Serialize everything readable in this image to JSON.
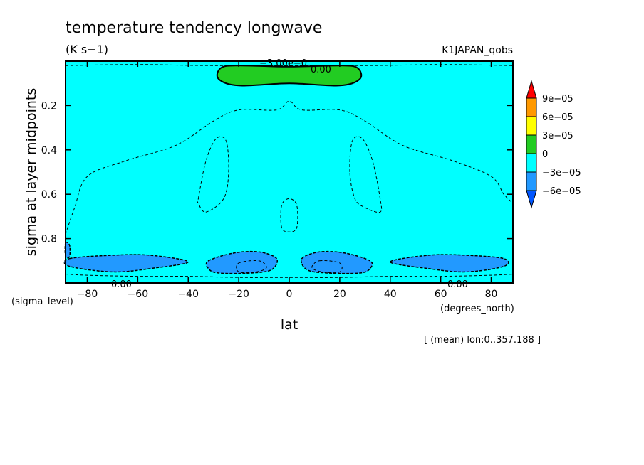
{
  "chart_data": {
    "type": "heatmap",
    "title": "temperature tendency longwave",
    "units": "(K s−1)",
    "dataset": "K1JAPAN_qobs",
    "xlabel": "lat",
    "ylabel": "sigma at layer midpoints",
    "x_unit_label": "(degrees_north)",
    "y_unit_label": "(sigma_level)",
    "note": "[ (mean) lon:0..357.188 ]",
    "xlim": [
      -88.6,
      88.6
    ],
    "ylim": [
      1.0,
      0.0
    ],
    "x_ticks": [
      -80,
      -60,
      -40,
      -20,
      0,
      20,
      40,
      60,
      80
    ],
    "x_tick_labels": [
      "−80",
      "−60",
      "−40",
      "−20",
      "0",
      "20",
      "40",
      "60",
      "80"
    ],
    "y_ticks": [
      0.2,
      0.4,
      0.6,
      0.8
    ],
    "y_tick_labels": [
      "0.2",
      "0.4",
      "0.6",
      "0.8"
    ],
    "colorbar": {
      "labels": [
        "9e−05",
        "6e−05",
        "3e−05",
        "0",
        "−3e−05",
        "−6e−05"
      ],
      "colors": [
        "#ff0000",
        "#ff9900",
        "#ffff00",
        "#22cc22",
        "#00ffff",
        "#2299ff",
        "#0055ff"
      ],
      "levels": [
        -6e-05,
        -3e-05,
        0,
        3e-05,
        6e-05,
        9e-05
      ]
    },
    "contour_labels": [
      "−3.00e−0",
      "0.00",
      "0.00",
      "0.00"
    ],
    "background_color": "#00ffff",
    "regions": [
      {
        "value_class": "0 to 3e-05",
        "color": "#22cc22",
        "outline": [
          [
            -27,
            0.03
          ],
          [
            -20,
            0.02
          ],
          [
            0,
            0.025
          ],
          [
            20,
            0.02
          ],
          [
            27,
            0.03
          ],
          [
            28,
            0.08
          ],
          [
            20,
            0.11
          ],
          [
            0,
            0.1
          ],
          [
            -20,
            0.11
          ],
          [
            -28,
            0.08
          ]
        ]
      },
      {
        "value_class": "-6e-05 to -3e-05",
        "color": "#2299ff",
        "outline": [
          [
            -87,
            0.89
          ],
          [
            -70,
            0.875
          ],
          [
            -55,
            0.875
          ],
          [
            -40,
            0.905
          ],
          [
            -55,
            0.935
          ],
          [
            -70,
            0.95
          ],
          [
            -87,
            0.925
          ]
        ]
      },
      {
        "value_class": "-6e-05 to -3e-05",
        "color": "#2299ff",
        "outline": [
          [
            -32,
            0.9
          ],
          [
            -22,
            0.865
          ],
          [
            -12,
            0.86
          ],
          [
            -5,
            0.89
          ],
          [
            -7,
            0.94
          ],
          [
            -15,
            0.955
          ],
          [
            -28,
            0.955
          ],
          [
            -32,
            0.935
          ]
        ]
      },
      {
        "value_class": "-6e-05 to -3e-05",
        "color": "#2299ff",
        "outline": [
          [
            5,
            0.89
          ],
          [
            12,
            0.86
          ],
          [
            22,
            0.865
          ],
          [
            32,
            0.9
          ],
          [
            32,
            0.935
          ],
          [
            28,
            0.955
          ],
          [
            15,
            0.955
          ],
          [
            7,
            0.94
          ]
        ]
      },
      {
        "value_class": "-6e-05 to -3e-05",
        "color": "#2299ff",
        "outline": [
          [
            40,
            0.905
          ],
          [
            55,
            0.875
          ],
          [
            70,
            0.875
          ],
          [
            85,
            0.89
          ],
          [
            85,
            0.925
          ],
          [
            70,
            0.95
          ],
          [
            55,
            0.935
          ]
        ]
      },
      {
        "value_class": "-6e-05 to -3e-05",
        "color": "#2299ff",
        "outline": [
          [
            -88.6,
            0.82
          ],
          [
            -87,
            0.83
          ],
          [
            -87,
            0.88
          ],
          [
            -88.6,
            0.88
          ]
        ]
      }
    ],
    "dashed_contours": [
      [
        [
          -88.6,
          0.78
        ],
        [
          -85,
          0.66
        ],
        [
          -80,
          0.52
        ],
        [
          -65,
          0.45
        ],
        [
          -45,
          0.38
        ],
        [
          -30,
          0.27
        ],
        [
          -20,
          0.22
        ],
        [
          -5,
          0.22
        ],
        [
          0,
          0.18
        ],
        [
          5,
          0.22
        ],
        [
          20,
          0.22
        ],
        [
          30,
          0.27
        ],
        [
          45,
          0.38
        ],
        [
          65,
          0.45
        ],
        [
          80,
          0.52
        ],
        [
          85,
          0.6
        ],
        [
          88.6,
          0.64
        ]
      ],
      [
        [
          -36,
          0.62
        ],
        [
          -33,
          0.45
        ],
        [
          -29,
          0.35
        ],
        [
          -25,
          0.36
        ],
        [
          -24,
          0.5
        ],
        [
          -26,
          0.62
        ],
        [
          -33,
          0.68
        ],
        [
          -36,
          0.64
        ]
      ],
      [
        [
          24,
          0.5
        ],
        [
          25,
          0.36
        ],
        [
          29,
          0.35
        ],
        [
          33,
          0.45
        ],
        [
          36,
          0.62
        ],
        [
          36,
          0.68
        ],
        [
          30,
          0.66
        ],
        [
          26,
          0.62
        ]
      ],
      [
        [
          -3,
          0.75
        ],
        [
          -3,
          0.65
        ],
        [
          0,
          0.62
        ],
        [
          3,
          0.65
        ],
        [
          3,
          0.75
        ],
        [
          0,
          0.77
        ]
      ],
      [
        [
          -20,
          0.91
        ],
        [
          -12,
          0.9
        ],
        [
          -9,
          0.93
        ],
        [
          -13,
          0.95
        ],
        [
          -20,
          0.95
        ]
      ],
      [
        [
          12,
          0.9
        ],
        [
          20,
          0.91
        ],
        [
          20,
          0.95
        ],
        [
          13,
          0.95
        ],
        [
          9,
          0.93
        ]
      ],
      [
        [
          -88.6,
          0.96
        ],
        [
          -80,
          0.965
        ],
        [
          -60,
          0.97
        ],
        [
          -40,
          0.97
        ],
        [
          -20,
          0.975
        ],
        [
          0,
          0.975
        ],
        [
          20,
          0.975
        ],
        [
          40,
          0.97
        ],
        [
          60,
          0.97
        ],
        [
          80,
          0.965
        ],
        [
          88.6,
          0.96
        ]
      ],
      [
        [
          -88.6,
          0.02
        ],
        [
          -60,
          0.015
        ],
        [
          -30,
          0.02
        ],
        [
          30,
          0.02
        ],
        [
          60,
          0.015
        ],
        [
          88.6,
          0.02
        ]
      ]
    ]
  }
}
